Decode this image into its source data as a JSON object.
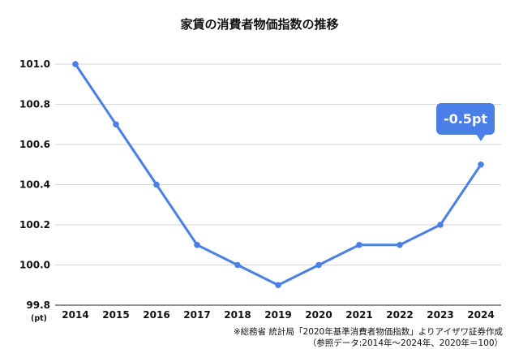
{
  "chart_data": {
    "type": "line",
    "title": "家賃の消費者物価指数の推移",
    "categories": [
      "2014",
      "2015",
      "2016",
      "2017",
      "2018",
      "2019",
      "2020",
      "2021",
      "2022",
      "2023",
      "2024"
    ],
    "series": [
      {
        "values": [
          101.0,
          100.7,
          100.4,
          100.1,
          100.0,
          99.9,
          100.0,
          100.1,
          100.1,
          100.2,
          100.5
        ]
      }
    ],
    "ylim": [
      99.8,
      101.0
    ],
    "yticks": [
      "101.0",
      "100.8",
      "100.6",
      "100.4",
      "100.2",
      "100.0",
      "99.8"
    ],
    "y_unit": "(pt)",
    "grid": true,
    "line_color": "#4a7fe8",
    "annotation": {
      "text": "-0.5pt",
      "category": "2024",
      "color": "#4a7fe8"
    },
    "source_lines": [
      "※総務省 統計局「2020年基準消費者物価指数」よりアイザワ証券作成",
      "（参照データ:2014年～2024年、2020年＝100）"
    ]
  }
}
